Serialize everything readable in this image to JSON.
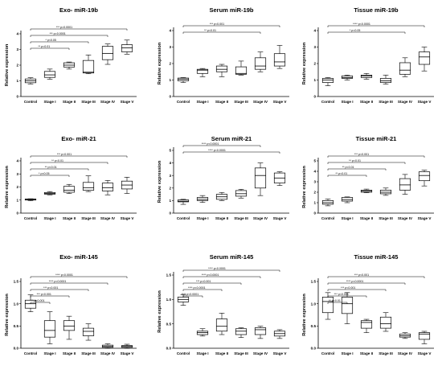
{
  "chart_data": [
    {
      "type": "boxplot",
      "title": "Exo- miR-19b",
      "ylabel": "Relative expression",
      "categories": [
        "Control",
        "Stage I",
        "Stage II",
        "Stage III",
        "Stage IV",
        "Stage V"
      ],
      "ylim": [
        0,
        4
      ],
      "yticks": [
        "0",
        "1",
        "2",
        "3",
        "4"
      ],
      "boxes": [
        {
          "min": 0.8,
          "q1": 0.88,
          "median": 1.0,
          "q3": 1.12,
          "max": 1.2
        },
        {
          "min": 1.1,
          "q1": 1.22,
          "median": 1.38,
          "q3": 1.6,
          "max": 1.75
        },
        {
          "min": 1.75,
          "q1": 1.88,
          "median": 2.0,
          "q3": 2.15,
          "max": 2.2
        },
        {
          "min": 1.45,
          "q1": 1.5,
          "median": 1.55,
          "q3": 2.3,
          "max": 2.65
        },
        {
          "min": 2.05,
          "q1": 2.35,
          "median": 2.75,
          "q3": 3.2,
          "max": 3.35
        },
        {
          "min": 2.7,
          "q1": 2.85,
          "median": 3.1,
          "q3": 3.3,
          "max": 3.6
        }
      ],
      "annotations": [
        {
          "label": "*** p=0.0001",
          "from": 0,
          "to": 5
        },
        {
          "label": "*** p=0.0001",
          "from": 0,
          "to": 4
        },
        {
          "label": "* p<0.05",
          "from": 0,
          "to": 3
        },
        {
          "label": "** p<0.01",
          "from": 0,
          "to": 2
        }
      ]
    },
    {
      "type": "boxplot",
      "title": "Serum miR-19b",
      "ylabel": "Relative expression",
      "categories": [
        "Control",
        "Stage I",
        "Stage II",
        "Stage III",
        "Stage IV",
        "Stage V"
      ],
      "ylim": [
        0,
        4
      ],
      "yticks": [
        "0",
        "1",
        "2",
        "3",
        "4"
      ],
      "boxes": [
        {
          "min": 0.85,
          "q1": 0.95,
          "median": 1.05,
          "q3": 1.12,
          "max": 1.15
        },
        {
          "min": 1.2,
          "q1": 1.4,
          "median": 1.6,
          "q3": 1.65,
          "max": 1.7
        },
        {
          "min": 1.2,
          "q1": 1.5,
          "median": 1.65,
          "q3": 1.85,
          "max": 1.95
        },
        {
          "min": 1.3,
          "q1": 1.35,
          "median": 1.4,
          "q3": 1.8,
          "max": 2.15
        },
        {
          "min": 1.5,
          "q1": 1.65,
          "median": 1.85,
          "q3": 2.35,
          "max": 2.7
        },
        {
          "min": 1.7,
          "q1": 1.85,
          "median": 2.1,
          "q3": 2.6,
          "max": 3.1
        }
      ],
      "annotations": [
        {
          "label": "*** p<0.001",
          "from": 0,
          "to": 5
        },
        {
          "label": "** p<0.01",
          "from": 0,
          "to": 4
        }
      ]
    },
    {
      "type": "boxplot",
      "title": "Tissue miR-19b",
      "ylabel": "Relative expression",
      "categories": [
        "Control",
        "Stage I",
        "Stage II",
        "Stage III",
        "Stage IV",
        "Stage V"
      ],
      "ylim": [
        0,
        4
      ],
      "yticks": [
        "0",
        "1",
        "2",
        "3",
        "4"
      ],
      "boxes": [
        {
          "min": 0.65,
          "q1": 0.85,
          "median": 1.0,
          "q3": 1.1,
          "max": 1.15
        },
        {
          "min": 1.0,
          "q1": 1.1,
          "median": 1.15,
          "q3": 1.25,
          "max": 1.3
        },
        {
          "min": 1.05,
          "q1": 1.15,
          "median": 1.25,
          "q3": 1.3,
          "max": 1.4
        },
        {
          "min": 0.75,
          "q1": 0.85,
          "median": 0.95,
          "q3": 1.1,
          "max": 1.3
        },
        {
          "min": 1.2,
          "q1": 1.35,
          "median": 1.6,
          "q3": 2.05,
          "max": 2.35
        },
        {
          "min": 1.55,
          "q1": 1.95,
          "median": 2.4,
          "q3": 2.7,
          "max": 3.0
        }
      ],
      "annotations": [
        {
          "label": "**** p<0.0001",
          "from": 0,
          "to": 5
        },
        {
          "label": "* p<0.05",
          "from": 0,
          "to": 4
        }
      ]
    },
    {
      "type": "boxplot",
      "title": "Exo- miR-21",
      "ylabel": "Relative expression",
      "categories": [
        "Control",
        "Stage I",
        "Stage II",
        "Stage III",
        "Stage IV",
        "Stage V"
      ],
      "ylim": [
        0,
        4
      ],
      "yticks": [
        "0",
        "1",
        "2",
        "3",
        "4"
      ],
      "boxes": [
        {
          "min": 0.95,
          "q1": 1.0,
          "median": 1.05,
          "q3": 1.08,
          "max": 1.1
        },
        {
          "min": 1.4,
          "q1": 1.45,
          "median": 1.5,
          "q3": 1.58,
          "max": 1.65
        },
        {
          "min": 1.5,
          "q1": 1.6,
          "median": 1.75,
          "q3": 2.05,
          "max": 2.2
        },
        {
          "min": 1.65,
          "q1": 1.75,
          "median": 1.95,
          "q3": 2.35,
          "max": 2.85
        },
        {
          "min": 1.4,
          "q1": 1.7,
          "median": 1.95,
          "q3": 2.3,
          "max": 2.5
        },
        {
          "min": 1.5,
          "q1": 1.85,
          "median": 2.15,
          "q3": 2.45,
          "max": 2.75
        }
      ],
      "annotations": [
        {
          "label": "*** p<0.001",
          "from": 0,
          "to": 5
        },
        {
          "label": "** p<0.01",
          "from": 0,
          "to": 4
        },
        {
          "label": "** p<0.01",
          "from": 0,
          "to": 3
        },
        {
          "label": "* p<0.05",
          "from": 0,
          "to": 2
        }
      ]
    },
    {
      "type": "boxplot",
      "title": "Serum miR-21",
      "ylabel": "Relative expression",
      "categories": [
        "Control",
        "Stage I",
        "Stage II",
        "Stage III",
        "Stage IV",
        "Stage V"
      ],
      "ylim": [
        0,
        5
      ],
      "yticks": [
        "0",
        "1",
        "2",
        "3",
        "4",
        "5"
      ],
      "boxes": [
        {
          "min": 0.7,
          "q1": 0.9,
          "median": 0.95,
          "q3": 1.05,
          "max": 1.1
        },
        {
          "min": 0.85,
          "q1": 1.0,
          "median": 1.1,
          "q3": 1.25,
          "max": 1.4
        },
        {
          "min": 1.0,
          "q1": 1.1,
          "median": 1.3,
          "q3": 1.5,
          "max": 1.65
        },
        {
          "min": 1.2,
          "q1": 1.35,
          "median": 1.55,
          "q3": 1.8,
          "max": 1.9
        },
        {
          "min": 1.4,
          "q1": 2.0,
          "median": 3.0,
          "q3": 3.6,
          "max": 4.0
        },
        {
          "min": 2.2,
          "q1": 2.4,
          "median": 2.8,
          "q3": 3.2,
          "max": 3.3
        }
      ],
      "annotations": [
        {
          "label": "**** p<0.0001",
          "from": 0,
          "to": 4
        },
        {
          "label": "**** p<0.0001",
          "from": 0,
          "to": 5
        }
      ]
    },
    {
      "type": "boxplot",
      "title": "Tissue miR-21",
      "ylabel": "Relative expression",
      "categories": [
        "Control",
        "Stage I",
        "Stage II",
        "Stage III",
        "Stage IV",
        "Stage V"
      ],
      "ylim": [
        0,
        5
      ],
      "yticks": [
        "0",
        "1",
        "2",
        "3",
        "4",
        "5"
      ],
      "boxes": [
        {
          "min": 0.7,
          "q1": 0.85,
          "median": 1.0,
          "q3": 1.2,
          "max": 1.35
        },
        {
          "min": 1.0,
          "q1": 1.15,
          "median": 1.3,
          "q3": 1.5,
          "max": 1.55
        },
        {
          "min": 1.95,
          "q1": 2.0,
          "median": 2.1,
          "q3": 2.2,
          "max": 2.3
        },
        {
          "min": 1.7,
          "q1": 1.85,
          "median": 2.0,
          "q3": 2.2,
          "max": 2.4
        },
        {
          "min": 1.8,
          "q1": 2.2,
          "median": 2.7,
          "q3": 3.3,
          "max": 3.7
        },
        {
          "min": 2.6,
          "q1": 3.1,
          "median": 3.6,
          "q3": 3.95,
          "max": 4.1
        }
      ],
      "annotations": [
        {
          "label": "*** p<0.001",
          "from": 0,
          "to": 5
        },
        {
          "label": "** p<0.01",
          "from": 0,
          "to": 4
        },
        {
          "label": "** p<0.01",
          "from": 0,
          "to": 3
        },
        {
          "label": "** p<0.01",
          "from": 0,
          "to": 2
        }
      ]
    },
    {
      "type": "boxplot",
      "title": "Exo- miR-145",
      "ylabel": "Relative expression",
      "categories": [
        "Control",
        "Stage I",
        "Stage II",
        "Stage III",
        "Stage IV",
        "Stage V"
      ],
      "ylim": [
        0,
        1.5
      ],
      "yticks": [
        "0.0",
        "0.5",
        "1.0",
        "1.5"
      ],
      "boxes": [
        {
          "min": 0.82,
          "q1": 0.9,
          "median": 1.0,
          "q3": 1.08,
          "max": 1.2
        },
        {
          "min": 0.1,
          "q1": 0.25,
          "median": 0.4,
          "q3": 0.62,
          "max": 0.82
        },
        {
          "min": 0.2,
          "q1": 0.4,
          "median": 0.5,
          "q3": 0.62,
          "max": 0.72
        },
        {
          "min": 0.18,
          "q1": 0.28,
          "median": 0.38,
          "q3": 0.45,
          "max": 0.55
        },
        {
          "min": 0.0,
          "q1": 0.02,
          "median": 0.04,
          "q3": 0.07,
          "max": 0.1
        },
        {
          "min": 0.0,
          "q1": 0.02,
          "median": 0.04,
          "q3": 0.06,
          "max": 0.09
        }
      ],
      "annotations": [
        {
          "label": "**** p<0.0001",
          "from": 0,
          "to": 5
        },
        {
          "label": "**** p<0.0001",
          "from": 0,
          "to": 4
        },
        {
          "label": "*** p<0.001",
          "from": 0,
          "to": 3
        },
        {
          "label": "*** p<0.001",
          "from": 0,
          "to": 2
        },
        {
          "label": "*** p<0.001",
          "from": 0,
          "to": 1
        }
      ]
    },
    {
      "type": "boxplot",
      "title": "Serum miR-145",
      "ylabel": "Relative expression",
      "categories": [
        "Control",
        "Stage I",
        "Stage II",
        "Stage III",
        "Stage IV",
        "Stage V"
      ],
      "ylim": [
        0,
        1.5
      ],
      "yticks": [
        "0.0",
        "0.5",
        "1.0",
        "1.5"
      ],
      "boxes": [
        {
          "min": 0.88,
          "q1": 0.95,
          "median": 1.0,
          "q3": 1.05,
          "max": 1.1
        },
        {
          "min": 0.25,
          "q1": 0.28,
          "median": 0.32,
          "q3": 0.35,
          "max": 0.4
        },
        {
          "min": 0.28,
          "q1": 0.35,
          "median": 0.45,
          "q3": 0.6,
          "max": 0.72
        },
        {
          "min": 0.22,
          "q1": 0.28,
          "median": 0.35,
          "q3": 0.4,
          "max": 0.42
        },
        {
          "min": 0.2,
          "q1": 0.28,
          "median": 0.38,
          "q3": 0.42,
          "max": 0.45
        },
        {
          "min": 0.2,
          "q1": 0.25,
          "median": 0.3,
          "q3": 0.35,
          "max": 0.38
        }
      ],
      "annotations": [
        {
          "label": "**** p<0.0001",
          "from": 0,
          "to": 5
        },
        {
          "label": "**** p<0.0001",
          "from": 0,
          "to": 4
        },
        {
          "label": "*** p<0.001",
          "from": 0,
          "to": 3
        },
        {
          "label": "**** p<0.0001",
          "from": 0,
          "to": 2
        },
        {
          "label": "**** p<0.0001",
          "from": 0,
          "to": 1
        }
      ]
    },
    {
      "type": "boxplot",
      "title": "Tissue miR-145",
      "ylabel": "Relative expression",
      "categories": [
        "Control",
        "Stage I",
        "Stage II",
        "Stage III",
        "Stage IV",
        "Stage V"
      ],
      "ylim": [
        0,
        1.5
      ],
      "yticks": [
        "0.0",
        "0.5",
        "1.0",
        "1.5"
      ],
      "boxes": [
        {
          "min": 0.65,
          "q1": 0.8,
          "median": 1.05,
          "q3": 1.15,
          "max": 1.25
        },
        {
          "min": 0.55,
          "q1": 0.78,
          "median": 1.0,
          "q3": 1.15,
          "max": 1.25
        },
        {
          "min": 0.35,
          "q1": 0.45,
          "median": 0.58,
          "q3": 0.62,
          "max": 0.65
        },
        {
          "min": 0.38,
          "q1": 0.45,
          "median": 0.55,
          "q3": 0.7,
          "max": 0.8
        },
        {
          "min": 0.22,
          "q1": 0.25,
          "median": 0.28,
          "q3": 0.32,
          "max": 0.35
        },
        {
          "min": 0.1,
          "q1": 0.2,
          "median": 0.32,
          "q3": 0.35,
          "max": 0.38
        }
      ],
      "annotations": [
        {
          "label": "*** p<0.001",
          "from": 0,
          "to": 5
        },
        {
          "label": "**** p<0.0001",
          "from": 0,
          "to": 4
        },
        {
          "label": "*** p<0.001",
          "from": 0,
          "to": 3
        },
        {
          "label": "*** p<0.001",
          "from": 0,
          "to": 2
        },
        {
          "label": "** p<0.01",
          "from": 0,
          "to": 1
        }
      ]
    }
  ]
}
